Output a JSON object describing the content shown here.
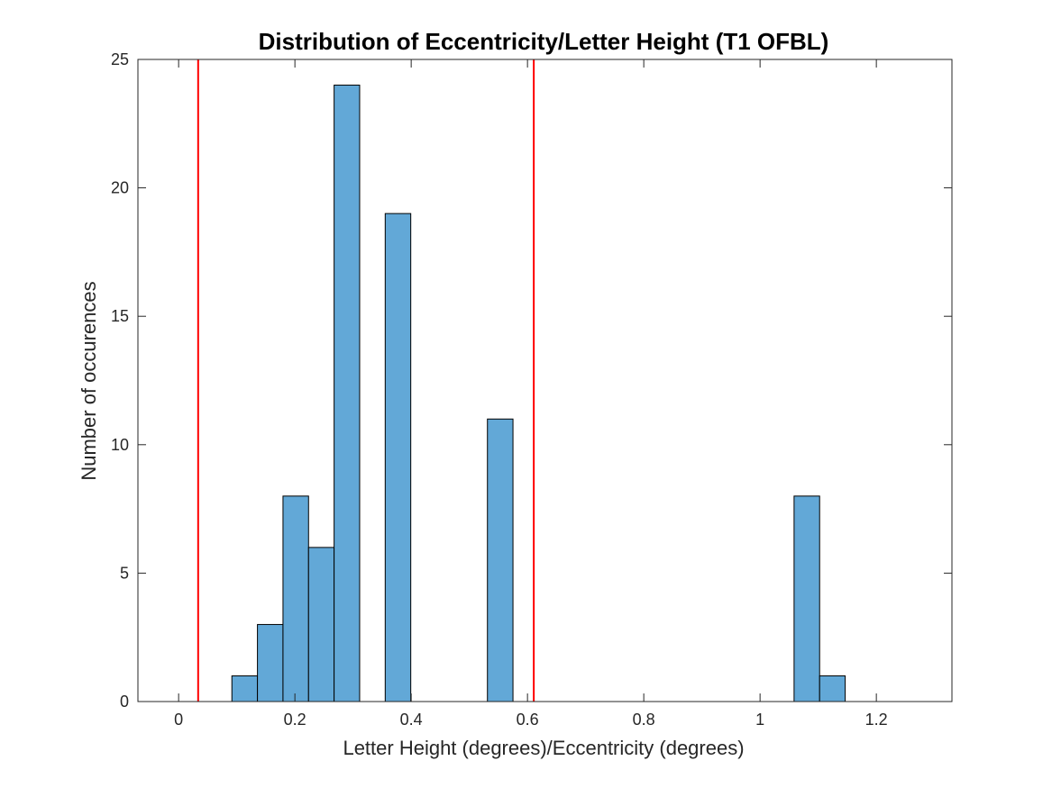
{
  "chart_data": {
    "type": "histogram",
    "title": "Distribution of Eccentricity/Letter Height (T1 OFBL)",
    "xlabel": "Letter Height (degrees)/Eccentricity (degrees)",
    "ylabel": "Number of occurences",
    "xlim": [
      -0.07,
      1.33
    ],
    "ylim": [
      0,
      25
    ],
    "xticks": [
      0,
      0.2,
      0.4,
      0.6,
      0.8,
      1,
      1.2
    ],
    "xtick_labels": [
      "0",
      "0.2",
      "0.4",
      "0.6",
      "0.8",
      "1",
      "1.2"
    ],
    "yticks": [
      0,
      5,
      10,
      15,
      20,
      25
    ],
    "ytick_labels": [
      "0",
      "5",
      "10",
      "15",
      "20",
      "25"
    ],
    "bin_start": 0.0037,
    "bin_width": 0.04395,
    "counts": [
      0,
      0,
      1,
      3,
      8,
      6,
      24,
      0,
      19,
      0,
      0,
      0,
      11,
      0,
      0,
      0,
      0,
      0,
      0,
      0,
      0,
      0,
      0,
      0,
      8,
      1,
      0,
      0
    ],
    "bar_color": "#62a8d7",
    "bar_edge_color": "#000000",
    "reference_lines": [
      {
        "x": 0.0336,
        "color": "#ff0000"
      },
      {
        "x": 0.6108,
        "color": "#ff0000"
      }
    ],
    "grid": false,
    "legend": "none"
  }
}
